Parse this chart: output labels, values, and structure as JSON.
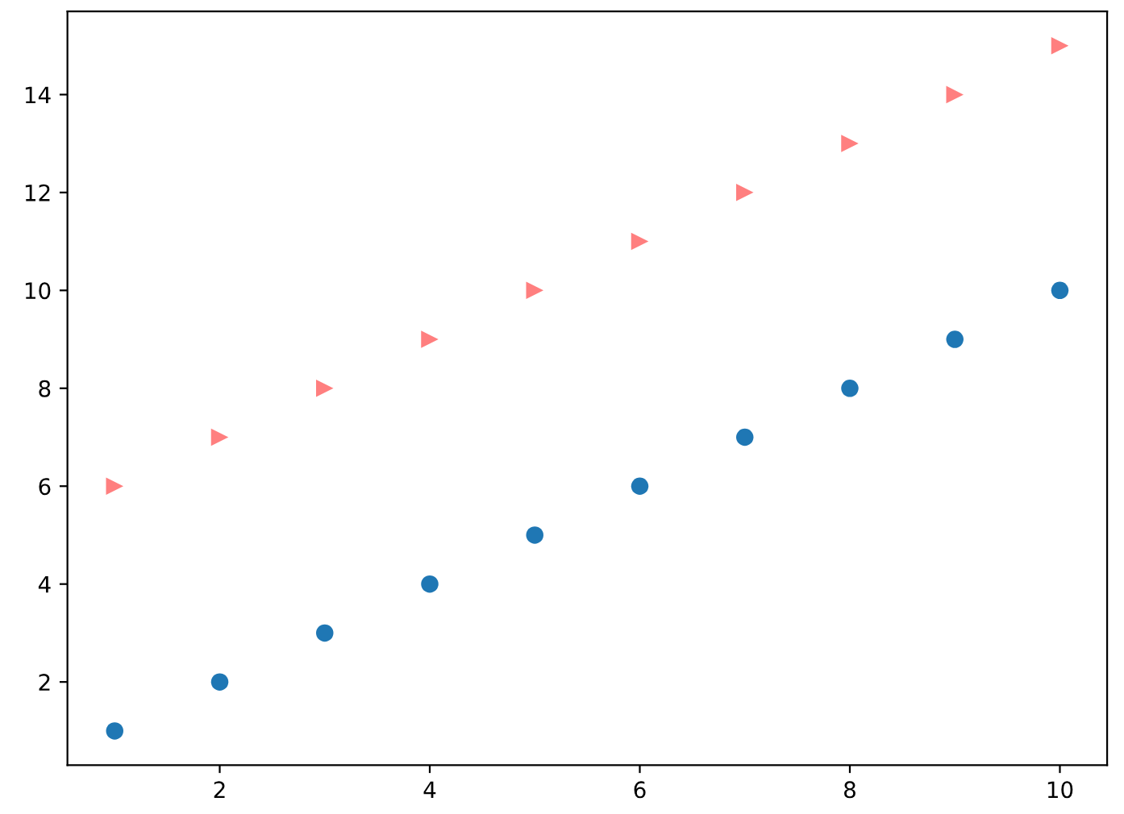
{
  "chart_data": {
    "type": "scatter",
    "x": [
      1,
      2,
      3,
      4,
      5,
      6,
      7,
      8,
      9,
      10
    ],
    "series": [
      {
        "color": "#1f77b4",
        "marker": "circle",
        "values": [
          1,
          2,
          3,
          4,
          5,
          6,
          7,
          8,
          9,
          10
        ]
      },
      {
        "color": "#ff7f7f",
        "marker": "triangle",
        "values": [
          6,
          7,
          8,
          9,
          10,
          11,
          12,
          13,
          14,
          15
        ]
      }
    ],
    "xlim": [
      0.55,
      10.45
    ],
    "ylim": [
      0.3,
      15.7
    ],
    "xticks": [
      2,
      4,
      6,
      8,
      10
    ],
    "yticks": [
      2,
      4,
      6,
      8,
      10,
      12,
      14
    ],
    "grid": false,
    "legend": false
  }
}
